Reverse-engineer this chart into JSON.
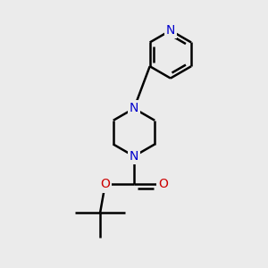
{
  "background_color": "#ebebeb",
  "bond_color": "#000000",
  "nitrogen_color": "#0000cc",
  "oxygen_color": "#cc0000",
  "bond_width": 1.8,
  "figsize": [
    3.0,
    3.0
  ],
  "dpi": 100,
  "xlim": [
    -2.5,
    3.5
  ],
  "ylim": [
    -4.5,
    3.5
  ],
  "fontsize": 10
}
